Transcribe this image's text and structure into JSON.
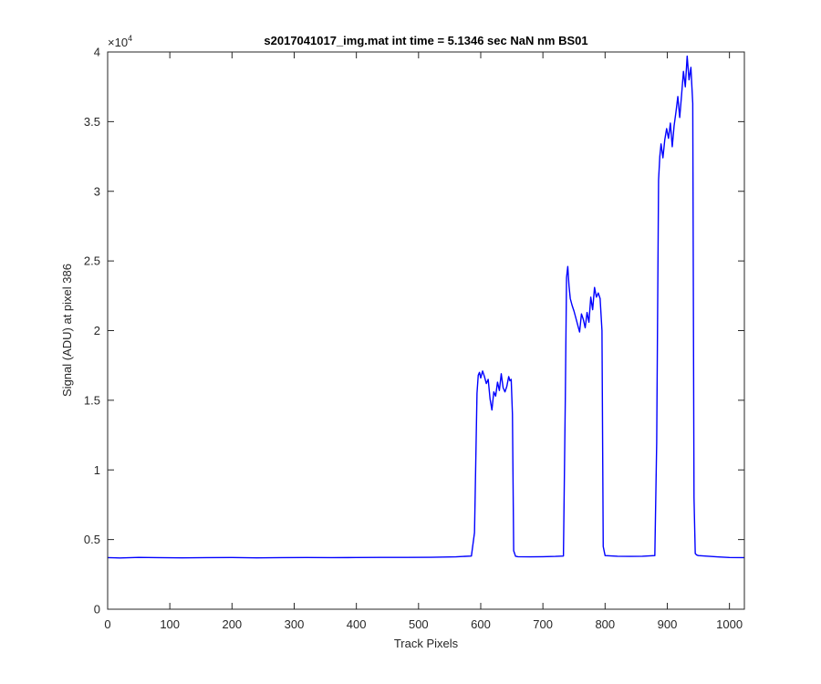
{
  "chart_data": {
    "type": "line",
    "title": "s2017041017_img.mat int time = 5.1346 sec  NaN nm BS01",
    "xlabel": "Track Pixels",
    "ylabel": "Signal (ADU) at pixel 386",
    "xlim": [
      0,
      1024
    ],
    "ylim": [
      0,
      40000
    ],
    "xticks": [
      0,
      100,
      200,
      300,
      400,
      500,
      600,
      700,
      800,
      900,
      1000
    ],
    "xtick_labels": [
      "0",
      "100",
      "200",
      "300",
      "400",
      "500",
      "600",
      "700",
      "800",
      "900",
      "1000"
    ],
    "yticks": [
      0,
      5000,
      10000,
      15000,
      20000,
      25000,
      30000,
      35000,
      40000
    ],
    "ytick_labels": [
      "0",
      "0.5",
      "1",
      "1.5",
      "2",
      "2.5",
      "3",
      "3.5",
      "4"
    ],
    "y_exponent_base": "×10",
    "y_exponent_power": "4",
    "grid": false,
    "line_color": "#0000ff",
    "series": [
      {
        "values_description_free": true,
        "x": [
          0,
          20,
          50,
          80,
          120,
          160,
          200,
          240,
          280,
          320,
          360,
          400,
          440,
          480,
          520,
          560,
          585,
          590,
          594,
          596,
          598,
          600,
          603,
          606,
          609,
          612,
          615,
          618,
          621,
          624,
          627,
          630,
          633,
          636,
          639,
          642,
          645,
          647,
          649,
          651,
          653,
          656,
          660,
          680,
          700,
          720,
          733,
          736,
          738,
          740,
          742,
          744,
          747,
          750,
          753,
          756,
          759,
          762,
          765,
          768,
          771,
          774,
          777,
          780,
          783,
          786,
          789,
          792,
          795,
          797,
          800,
          820,
          840,
          860,
          880,
          883,
          886,
          888,
          890,
          893,
          896,
          899,
          902,
          905,
          908,
          911,
          914,
          917,
          920,
          923,
          926,
          929,
          932,
          935,
          938,
          941,
          943,
          945,
          947,
          950,
          980,
          1000,
          1024
        ],
        "y": [
          3700,
          3680,
          3720,
          3700,
          3690,
          3700,
          3710,
          3690,
          3700,
          3710,
          3700,
          3710,
          3720,
          3720,
          3730,
          3760,
          3820,
          5500,
          15500,
          16800,
          17000,
          16600,
          17100,
          16700,
          16200,
          16500,
          15100,
          14300,
          15600,
          15300,
          16300,
          15700,
          16900,
          15900,
          15600,
          16000,
          16700,
          16400,
          16500,
          14000,
          4200,
          3800,
          3770,
          3760,
          3770,
          3790,
          3820,
          15000,
          23800,
          24600,
          23200,
          22300,
          21800,
          21400,
          20900,
          20400,
          19900,
          21200,
          20800,
          20200,
          21300,
          20600,
          22400,
          21500,
          23100,
          22400,
          22700,
          22300,
          20000,
          4500,
          3850,
          3800,
          3790,
          3800,
          3850,
          12000,
          30800,
          32500,
          33400,
          32400,
          33700,
          34500,
          33800,
          34900,
          33200,
          34700,
          35700,
          36800,
          35300,
          36900,
          38600,
          37500,
          39700,
          38000,
          38900,
          36300,
          8000,
          4000,
          3900,
          3850,
          3760,
          3710,
          3700
        ]
      }
    ]
  }
}
